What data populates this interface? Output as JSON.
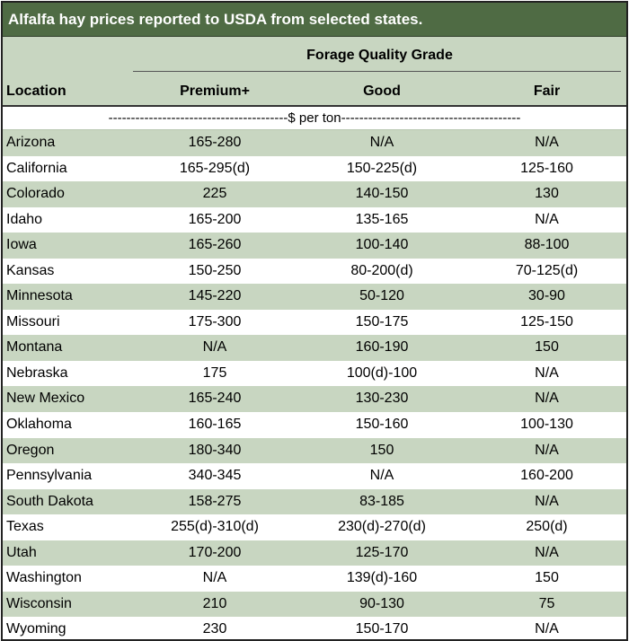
{
  "title": "Alfalfa hay prices reported to USDA from selected states.",
  "header": {
    "group_label": "Forage Quality Grade",
    "location_label": "Location",
    "columns": [
      "Premium+",
      "Good",
      "Fair"
    ]
  },
  "units_label": "----------------------------------------$ per ton----------------------------------------",
  "rows": [
    {
      "location": "Arizona",
      "premium": "165-280",
      "good": "N/A",
      "fair": "N/A"
    },
    {
      "location": "California",
      "premium": "165-295(d)",
      "good": "150-225(d)",
      "fair": "125-160"
    },
    {
      "location": "Colorado",
      "premium": "225",
      "good": "140-150",
      "fair": "130"
    },
    {
      "location": "Idaho",
      "premium": "165-200",
      "good": "135-165",
      "fair": "N/A"
    },
    {
      "location": "Iowa",
      "premium": "165-260",
      "good": "100-140",
      "fair": "88-100"
    },
    {
      "location": "Kansas",
      "premium": "150-250",
      "good": "80-200(d)",
      "fair": "70-125(d)"
    },
    {
      "location": "Minnesota",
      "premium": "145-220",
      "good": "50-120",
      "fair": "30-90"
    },
    {
      "location": "Missouri",
      "premium": "175-300",
      "good": "150-175",
      "fair": "125-150"
    },
    {
      "location": "Montana",
      "premium": "N/A",
      "good": "160-190",
      "fair": "150"
    },
    {
      "location": "Nebraska",
      "premium": "175",
      "good": "100(d)-100",
      "fair": "N/A"
    },
    {
      "location": "New Mexico",
      "premium": "165-240",
      "good": "130-230",
      "fair": "N/A"
    },
    {
      "location": "Oklahoma",
      "premium": "160-165",
      "good": "150-160",
      "fair": "100-130"
    },
    {
      "location": "Oregon",
      "premium": "180-340",
      "good": "150",
      "fair": "N/A"
    },
    {
      "location": "Pennsylvania",
      "premium": "340-345",
      "good": "N/A",
      "fair": "160-200"
    },
    {
      "location": "South Dakota",
      "premium": "158-275",
      "good": "83-185",
      "fair": "N/A"
    },
    {
      "location": "Texas",
      "premium": "255(d)-310(d)",
      "good": "230(d)-270(d)",
      "fair": "250(d)"
    },
    {
      "location": "Utah",
      "premium": "170-200",
      "good": "125-170",
      "fair": "N/A"
    },
    {
      "location": "Washington",
      "premium": "N/A",
      "good": "139(d)-160",
      "fair": "150"
    },
    {
      "location": "Wisconsin",
      "premium": "210",
      "good": "90-130",
      "fair": "75"
    },
    {
      "location": "Wyoming",
      "premium": "230",
      "good": "150-170",
      "fair": "N/A"
    }
  ],
  "colors": {
    "title_bg": "#4f6b44",
    "shade": "#c8d6c1"
  }
}
